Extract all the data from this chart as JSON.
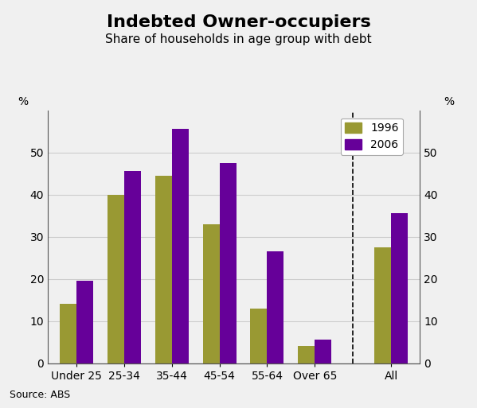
{
  "title": "Indebted Owner-occupiers",
  "subtitle": "Share of households in age group with debt",
  "categories": [
    "Under 25",
    "25-34",
    "35-44",
    "45-54",
    "55-64",
    "Over 65",
    "All"
  ],
  "values_1996": [
    14.0,
    40.0,
    44.5,
    33.0,
    13.0,
    4.0,
    27.5
  ],
  "values_2006": [
    19.5,
    45.5,
    55.5,
    47.5,
    26.5,
    5.5,
    35.5
  ],
  "color_1996": "#999933",
  "color_2006": "#660099",
  "ylabel_left": "%",
  "ylabel_right": "%",
  "ylim": [
    0,
    60
  ],
  "yticks": [
    0,
    10,
    20,
    30,
    40,
    50
  ],
  "legend_labels": [
    "1996",
    "2006"
  ],
  "source_text": "Source: ABS",
  "bar_width": 0.35,
  "background_color": "#f0f0f0",
  "grid_color": "#cccccc",
  "title_fontsize": 16,
  "subtitle_fontsize": 11,
  "tick_fontsize": 10,
  "legend_fontsize": 10,
  "source_fontsize": 9
}
